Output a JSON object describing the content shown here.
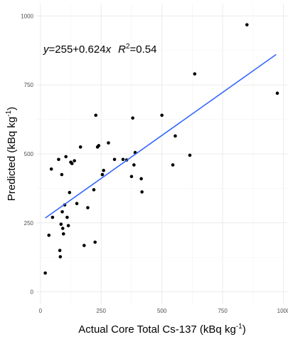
{
  "chart_data": {
    "type": "scatter",
    "xlabel": "Actual Core Total Cs-137 (kBq kg",
    "xlabel_sup": "-1",
    "xlabel_end": ")",
    "ylabel": "Predicted (kBq kg",
    "ylabel_sup": "-1",
    "ylabel_end": ")",
    "xlim": [
      -17,
      1016
    ],
    "ylim": [
      -45,
      1045
    ],
    "xticks": [
      "0",
      "250",
      "500",
      "750",
      "1000"
    ],
    "yticks": [
      "0",
      "250",
      "500",
      "750",
      "1000"
    ],
    "xtick_values": [
      0,
      250,
      500,
      750,
      1000
    ],
    "ytick_values": [
      0,
      250,
      500,
      750,
      1000
    ],
    "grid": true,
    "equation": {
      "y": "y",
      "eq_mid": "=255+0.624",
      "x": "x",
      "r": "R",
      "r_sup": "2",
      "r_val": "=0.54"
    },
    "fit_line": {
      "intercept": 255,
      "slope": 0.624,
      "x_range": [
        20,
        970
      ],
      "color": "#3366ff"
    },
    "point_color": "#000000",
    "points": [
      [
        20,
        68
      ],
      [
        35,
        205
      ],
      [
        45,
        445
      ],
      [
        50,
        270
      ],
      [
        75,
        480
      ],
      [
        80,
        150
      ],
      [
        82,
        127
      ],
      [
        85,
        245
      ],
      [
        88,
        425
      ],
      [
        90,
        290
      ],
      [
        92,
        230
      ],
      [
        95,
        210
      ],
      [
        100,
        315
      ],
      [
        105,
        490
      ],
      [
        110,
        270
      ],
      [
        115,
        240
      ],
      [
        120,
        360
      ],
      [
        125,
        470
      ],
      [
        130,
        465
      ],
      [
        140,
        475
      ],
      [
        150,
        320
      ],
      [
        165,
        525
      ],
      [
        180,
        168
      ],
      [
        195,
        305
      ],
      [
        220,
        370
      ],
      [
        225,
        180
      ],
      [
        228,
        640
      ],
      [
        235,
        525
      ],
      [
        240,
        530
      ],
      [
        255,
        425
      ],
      [
        260,
        440
      ],
      [
        280,
        540
      ],
      [
        305,
        480
      ],
      [
        340,
        480
      ],
      [
        355,
        478
      ],
      [
        375,
        418
      ],
      [
        380,
        630
      ],
      [
        385,
        460
      ],
      [
        390,
        505
      ],
      [
        415,
        410
      ],
      [
        418,
        362
      ],
      [
        500,
        640
      ],
      [
        545,
        460
      ],
      [
        555,
        565
      ],
      [
        615,
        495
      ],
      [
        635,
        790
      ],
      [
        850,
        968
      ],
      [
        975,
        720
      ]
    ]
  }
}
